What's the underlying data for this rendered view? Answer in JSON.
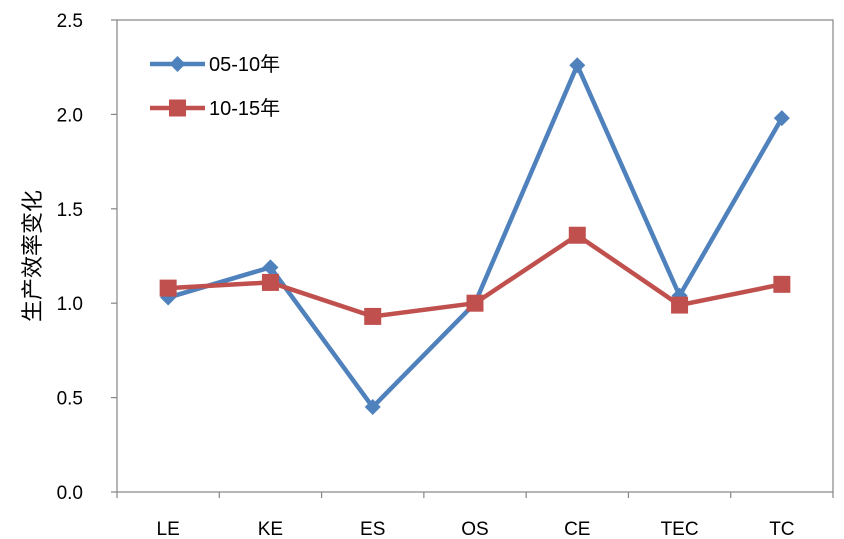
{
  "chart_data": {
    "type": "line",
    "title": "",
    "xlabel": "",
    "ylabel": "生产效率变化",
    "categories": [
      "LE",
      "KE",
      "ES",
      "OS",
      "CE",
      "TEC",
      "TC"
    ],
    "ylim": [
      0,
      2.5
    ],
    "yticks": [
      "0.0",
      "0.5",
      "1.0",
      "1.5",
      "2.0",
      "2.5"
    ],
    "grid": false,
    "legend": "top-left",
    "series": [
      {
        "name": "05-10年",
        "color": "#4F81BD",
        "marker": "diamond",
        "values": [
          1.03,
          1.19,
          0.45,
          1.0,
          2.26,
          1.04,
          1.98
        ]
      },
      {
        "name": "10-15年",
        "color": "#C0504D",
        "marker": "square",
        "values": [
          1.08,
          1.11,
          0.93,
          1.0,
          1.36,
          0.99,
          1.1
        ]
      }
    ]
  }
}
